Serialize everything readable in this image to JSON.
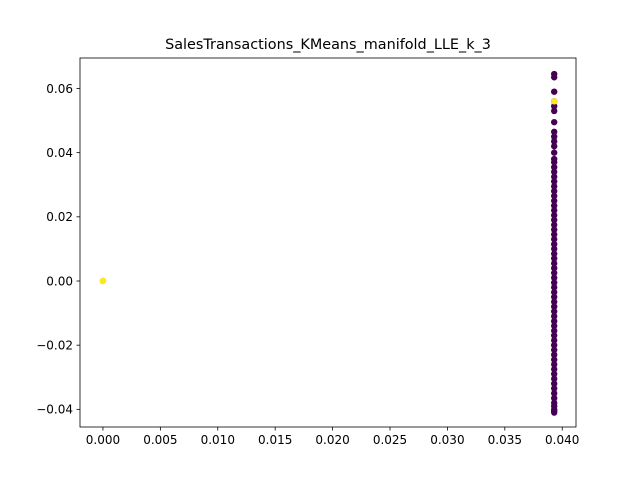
{
  "chart_data": {
    "type": "scatter",
    "title": "SalesTransactions_KMeans_manifold_LLE_k_3",
    "xlabel": "",
    "ylabel": "",
    "xlim": [
      -0.002,
      0.0412
    ],
    "ylim": [
      -0.0455,
      0.0695
    ],
    "grid": false,
    "x_ticks": [
      0.0,
      0.005,
      0.01,
      0.015,
      0.02,
      0.025,
      0.03,
      0.035,
      0.04
    ],
    "x_tick_labels": [
      "0.000",
      "0.005",
      "0.010",
      "0.015",
      "0.020",
      "0.025",
      "0.030",
      "0.035",
      "0.040"
    ],
    "y_ticks": [
      -0.04,
      -0.02,
      0.0,
      0.02,
      0.04,
      0.06
    ],
    "y_tick_labels": [
      "−0.04",
      "−0.02",
      "0.00",
      "0.02",
      "0.04",
      "0.06"
    ],
    "clusters": [
      {
        "color": "#440154",
        "x_constant": 0.0393,
        "y_values": [
          0.0645,
          0.0635,
          0.059,
          0.056,
          0.0545,
          0.053,
          0.0495,
          0.0465,
          0.045,
          0.0435,
          0.042,
          0.04,
          0.038,
          0.037,
          0.0355,
          0.034,
          0.0325,
          0.031,
          0.0295,
          0.028,
          0.0265,
          0.025,
          0.0235,
          0.022,
          0.0205,
          0.019,
          0.0175,
          0.016,
          0.0145,
          0.013,
          0.0115,
          0.01,
          0.0085,
          0.007,
          0.0055,
          0.004,
          0.0025,
          0.001,
          -0.0005,
          -0.002,
          -0.0035,
          -0.005,
          -0.0065,
          -0.008,
          -0.0095,
          -0.011,
          -0.0125,
          -0.014,
          -0.0155,
          -0.017,
          -0.0185,
          -0.02,
          -0.0215,
          -0.023,
          -0.0245,
          -0.026,
          -0.0275,
          -0.029,
          -0.0305,
          -0.032,
          -0.0335,
          -0.035,
          -0.0365,
          -0.038,
          -0.039,
          -0.04,
          -0.0405,
          -0.041
        ]
      },
      {
        "color": "#fde725",
        "points": [
          [
            0.0393,
            0.056
          ],
          [
            0.0,
            0.0
          ],
          [
            2e-05,
            5e-05
          ],
          [
            -2e-05,
            -3e-05
          ]
        ]
      }
    ]
  }
}
